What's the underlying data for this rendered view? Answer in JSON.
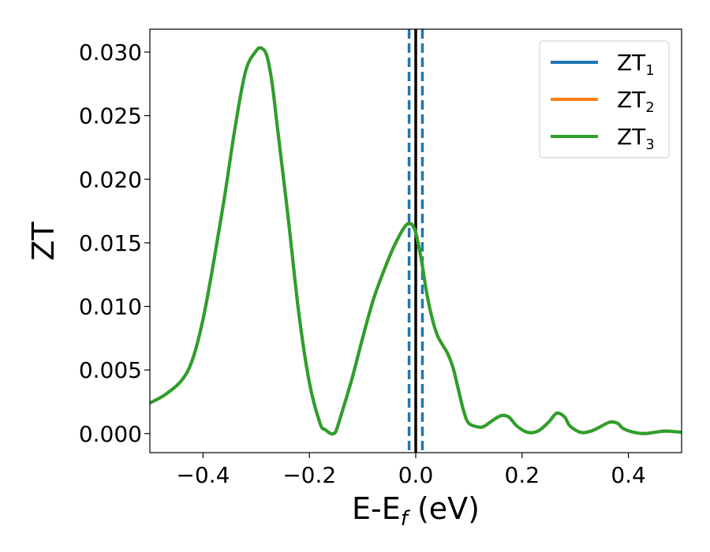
{
  "chart_data": {
    "type": "line",
    "xlabel_main": "E-E",
    "xlabel_sub": "f",
    "xlabel_unit": " (eV)",
    "ylabel": "ZT",
    "xlim": [
      -0.5,
      0.5
    ],
    "ylim": [
      -0.0015,
      0.0318
    ],
    "xticks": [
      -0.4,
      -0.2,
      0.0,
      0.2,
      0.4
    ],
    "xtick_labels": [
      "−0.4",
      "−0.2",
      "0.0",
      "0.2",
      "0.4"
    ],
    "yticks": [
      0.0,
      0.005,
      0.01,
      0.015,
      0.02,
      0.025,
      0.03
    ],
    "ytick_labels": [
      "0.000",
      "0.005",
      "0.010",
      "0.015",
      "0.020",
      "0.025",
      "0.030"
    ],
    "legend_placement": "top-right",
    "grid": false,
    "vlines": [
      {
        "x": 0.0,
        "color": "#000000",
        "style": "solid"
      },
      {
        "x": -0.0125,
        "color": "#1f77b4",
        "style": "dashed"
      },
      {
        "x": 0.0125,
        "color": "#1f77b4",
        "style": "dashed"
      }
    ],
    "x": [
      -0.5,
      -0.47,
      -0.44,
      -0.42,
      -0.4,
      -0.38,
      -0.36,
      -0.34,
      -0.32,
      -0.3,
      -0.29,
      -0.28,
      -0.27,
      -0.26,
      -0.24,
      -0.22,
      -0.2,
      -0.18,
      -0.17,
      -0.16,
      -0.155,
      -0.15,
      -0.14,
      -0.12,
      -0.1,
      -0.08,
      -0.06,
      -0.04,
      -0.02,
      -0.01,
      -0.005,
      0.0,
      0.01,
      0.02,
      0.03,
      0.04,
      0.05,
      0.06,
      0.07,
      0.08,
      0.09,
      0.1,
      0.12,
      0.13,
      0.14,
      0.16,
      0.175,
      0.19,
      0.21,
      0.23,
      0.25,
      0.265,
      0.28,
      0.29,
      0.31,
      0.33,
      0.35,
      0.365,
      0.38,
      0.39,
      0.41,
      0.43,
      0.45,
      0.47,
      0.5
    ],
    "series": [
      {
        "name": "ZT",
        "sub": "1",
        "color": "#1f77b4",
        "values": [
          0.0024,
          0.0031,
          0.0042,
          0.0058,
          0.009,
          0.0135,
          0.0185,
          0.024,
          0.0285,
          0.0301,
          0.0303,
          0.0297,
          0.0275,
          0.024,
          0.017,
          0.0095,
          0.004,
          0.0008,
          0.0003,
          0.0,
          0.0,
          0.0002,
          0.0015,
          0.0043,
          0.0075,
          0.0105,
          0.0128,
          0.0148,
          0.0163,
          0.0165,
          0.0163,
          0.0158,
          0.0138,
          0.0112,
          0.0092,
          0.0078,
          0.007,
          0.0063,
          0.0052,
          0.0035,
          0.0018,
          0.0008,
          0.0005,
          0.0006,
          0.0009,
          0.0014,
          0.0013,
          0.0006,
          0.0001,
          0.0002,
          0.0009,
          0.0016,
          0.0013,
          0.0006,
          0.0001,
          0.0002,
          0.0006,
          0.0009,
          0.0008,
          0.0004,
          0.0001,
          0.0,
          0.0001,
          0.0002,
          0.0001
        ]
      },
      {
        "name": "ZT",
        "sub": "2",
        "color": "#ff7f0e",
        "values": [
          0.0024,
          0.0031,
          0.0042,
          0.0058,
          0.009,
          0.0135,
          0.0185,
          0.024,
          0.0285,
          0.0301,
          0.0303,
          0.0297,
          0.0275,
          0.024,
          0.017,
          0.0095,
          0.004,
          0.0008,
          0.0003,
          0.0,
          0.0,
          0.0002,
          0.0015,
          0.0043,
          0.0075,
          0.0105,
          0.0128,
          0.0148,
          0.0163,
          0.0165,
          0.0163,
          0.0158,
          0.0138,
          0.0112,
          0.0092,
          0.0078,
          0.007,
          0.0063,
          0.0052,
          0.0035,
          0.0018,
          0.0008,
          0.0005,
          0.0006,
          0.0009,
          0.0014,
          0.0013,
          0.0006,
          0.0001,
          0.0002,
          0.0009,
          0.0016,
          0.0013,
          0.0006,
          0.0001,
          0.0002,
          0.0006,
          0.0009,
          0.0008,
          0.0004,
          0.0001,
          0.0,
          0.0001,
          0.0002,
          0.0001
        ]
      },
      {
        "name": "ZT",
        "sub": "3",
        "color": "#2ca02c",
        "values": [
          0.0024,
          0.0031,
          0.0042,
          0.0058,
          0.009,
          0.0135,
          0.0185,
          0.024,
          0.0285,
          0.0301,
          0.0303,
          0.0297,
          0.0275,
          0.024,
          0.017,
          0.0095,
          0.004,
          0.0008,
          0.0003,
          0.0,
          0.0,
          0.0002,
          0.0015,
          0.0043,
          0.0075,
          0.0105,
          0.0128,
          0.0148,
          0.0163,
          0.0165,
          0.0163,
          0.0158,
          0.0138,
          0.0112,
          0.0092,
          0.0078,
          0.007,
          0.0063,
          0.0052,
          0.0035,
          0.0018,
          0.0008,
          0.0005,
          0.0006,
          0.0009,
          0.0014,
          0.0013,
          0.0006,
          0.0001,
          0.0002,
          0.0009,
          0.0016,
          0.0013,
          0.0006,
          0.0001,
          0.0002,
          0.0006,
          0.0009,
          0.0008,
          0.0004,
          0.0001,
          0.0,
          0.0001,
          0.0002,
          0.0001
        ]
      }
    ]
  }
}
